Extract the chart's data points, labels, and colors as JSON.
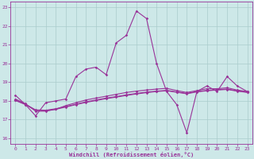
{
  "xlabel": "Windchill (Refroidissement éolien,°C)",
  "xlim": [
    -0.5,
    23.5
  ],
  "ylim": [
    15.7,
    23.3
  ],
  "yticks": [
    16,
    17,
    18,
    19,
    20,
    21,
    22,
    23
  ],
  "xticks": [
    0,
    1,
    2,
    3,
    4,
    5,
    6,
    7,
    8,
    9,
    10,
    11,
    12,
    13,
    14,
    15,
    16,
    17,
    18,
    19,
    20,
    21,
    22,
    23
  ],
  "background_color": "#cde8e8",
  "grid_color": "#aacccc",
  "line_color": "#993399",
  "line1_x": [
    0,
    1,
    2,
    3,
    4,
    5,
    6,
    7,
    8,
    9,
    10,
    11,
    12,
    13,
    14,
    15,
    16,
    17,
    18,
    19,
    20,
    21,
    22,
    23
  ],
  "line1_y": [
    18.3,
    17.8,
    17.2,
    17.9,
    18.0,
    18.1,
    19.3,
    19.7,
    19.8,
    19.4,
    21.1,
    21.5,
    22.8,
    22.4,
    20.0,
    18.5,
    17.8,
    16.3,
    18.5,
    18.8,
    18.5,
    19.3,
    18.8,
    18.5
  ],
  "line2_x": [
    0,
    1,
    2,
    3,
    4,
    5,
    6,
    7,
    8,
    9,
    10,
    11,
    12,
    13,
    14,
    15,
    16,
    17,
    18,
    19,
    20,
    21,
    22,
    23
  ],
  "line2_y": [
    18.1,
    17.85,
    17.45,
    17.45,
    17.55,
    17.75,
    17.9,
    18.05,
    18.15,
    18.25,
    18.35,
    18.45,
    18.52,
    18.58,
    18.63,
    18.67,
    18.55,
    18.45,
    18.55,
    18.65,
    18.65,
    18.7,
    18.58,
    18.5
  ],
  "line3_x": [
    0,
    1,
    2,
    3,
    4,
    5,
    6,
    7,
    8,
    9,
    10,
    11,
    12,
    13,
    14,
    15,
    16,
    17,
    18,
    19,
    20,
    21,
    22,
    23
  ],
  "line3_y": [
    18.05,
    17.82,
    17.52,
    17.5,
    17.58,
    17.7,
    17.82,
    17.95,
    18.05,
    18.15,
    18.23,
    18.32,
    18.4,
    18.47,
    18.52,
    18.56,
    18.48,
    18.4,
    18.5,
    18.56,
    18.6,
    18.63,
    18.54,
    18.47
  ],
  "line4_x": [
    0,
    1,
    2,
    3,
    4,
    5,
    6,
    7,
    8,
    9,
    10,
    11,
    12,
    13,
    14,
    15,
    16,
    17,
    18,
    19,
    20,
    21,
    22,
    23
  ],
  "line4_y": [
    18.02,
    17.8,
    17.5,
    17.47,
    17.55,
    17.67,
    17.8,
    17.92,
    18.02,
    18.12,
    18.2,
    18.29,
    18.37,
    18.44,
    18.5,
    18.54,
    18.46,
    18.38,
    18.48,
    18.54,
    18.58,
    18.61,
    18.52,
    18.45
  ]
}
